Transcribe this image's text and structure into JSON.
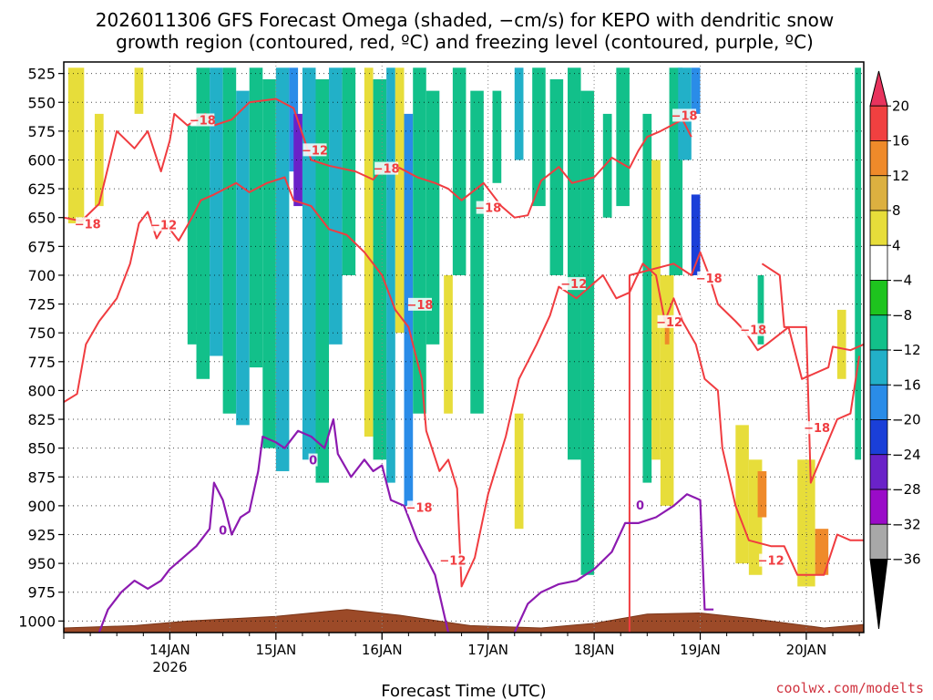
{
  "chart_data": {
    "type": "heatmap",
    "title_line1": "2026011306 GFS Forecast Omega (shaded, −cm/s) for KEPO with dendritic snow",
    "title_line2": "growth region (contoured, red, ºC) and freezing level (contoured, purple, ºC)",
    "xlabel": "Forecast Time (UTC)",
    "ylabel": "",
    "credit": "coolwx.com/modelts",
    "y_levels": [
      525,
      550,
      575,
      600,
      625,
      650,
      675,
      700,
      725,
      750,
      775,
      800,
      825,
      850,
      875,
      900,
      925,
      950,
      975,
      1000
    ],
    "y_labels": [
      "525",
      "550",
      "575",
      "600",
      "625",
      "650",
      "675",
      "700",
      "725",
      "750",
      "775",
      "800",
      "825",
      "850",
      "875",
      "900",
      "925",
      "950",
      "975",
      "1000"
    ],
    "ylim": [
      1010,
      515
    ],
    "x_hours": [
      6,
      96.5
    ],
    "x_ticks": [
      {
        "hour": 18,
        "label": "14JAN",
        "sublabel": "2026"
      },
      {
        "hour": 30,
        "label": "15JAN",
        "sublabel": ""
      },
      {
        "hour": 42,
        "label": "16JAN",
        "sublabel": ""
      },
      {
        "hour": 54,
        "label": "17JAN",
        "sublabel": ""
      },
      {
        "hour": 66,
        "label": "18JAN",
        "sublabel": ""
      },
      {
        "hour": 78,
        "label": "19JAN",
        "sublabel": ""
      },
      {
        "hour": 90,
        "label": "20JAN",
        "sublabel": ""
      }
    ],
    "grid": true,
    "colorbar": {
      "labels": [
        "20",
        "16",
        "12",
        "8",
        "4",
        "−4",
        "−8",
        "−12",
        "−16",
        "−20",
        "−24",
        "−28",
        "−32",
        "−36"
      ],
      "colors": [
        "#e8335d",
        "#f04040",
        "#ef8a2a",
        "#dcb040",
        "#e7dd3a",
        "#ffffff",
        "#1ec41e",
        "#12c08a",
        "#22b0c8",
        "#2a8ce8",
        "#1a3fd8",
        "#6a22c8",
        "#9a0bc8",
        "#a8a8a8",
        "#000000"
      ],
      "legend_position": "right"
    },
    "omega_cells": [
      {
        "t0": 6.5,
        "t1": 8.3,
        "p0": 520,
        "p1": 655,
        "v": 4
      },
      {
        "t0": 9.5,
        "t1": 10.5,
        "p0": 560,
        "p1": 640,
        "v": 4
      },
      {
        "t0": 14.0,
        "t1": 15.0,
        "p0": 520,
        "p1": 560,
        "v": 4
      },
      {
        "t0": 20.0,
        "t1": 21.0,
        "p0": 570,
        "p1": 760,
        "v": -8
      },
      {
        "t0": 21.0,
        "t1": 22.5,
        "p0": 520,
        "p1": 790,
        "v": -8
      },
      {
        "t0": 22.5,
        "t1": 24.0,
        "p0": 520,
        "p1": 770,
        "v": -12
      },
      {
        "t0": 24.0,
        "t1": 25.5,
        "p0": 520,
        "p1": 820,
        "v": -8
      },
      {
        "t0": 25.5,
        "t1": 27.0,
        "p0": 540,
        "p1": 830,
        "v": -12
      },
      {
        "t0": 27.0,
        "t1": 28.5,
        "p0": 520,
        "p1": 780,
        "v": -8
      },
      {
        "t0": 28.5,
        "t1": 30.0,
        "p0": 530,
        "p1": 850,
        "v": -8
      },
      {
        "t0": 30.0,
        "t1": 31.5,
        "p0": 520,
        "p1": 870,
        "v": -12
      },
      {
        "t0": 31.5,
        "t1": 32.5,
        "p0": 520,
        "p1": 610,
        "v": -16
      },
      {
        "t0": 32.0,
        "t1": 33.0,
        "p0": 560,
        "p1": 640,
        "v": -24
      },
      {
        "t0": 33.0,
        "t1": 34.5,
        "p0": 520,
        "p1": 860,
        "v": -12
      },
      {
        "t0": 34.5,
        "t1": 36.0,
        "p0": 530,
        "p1": 880,
        "v": -8
      },
      {
        "t0": 36.0,
        "t1": 37.5,
        "p0": 520,
        "p1": 760,
        "v": -12
      },
      {
        "t0": 37.5,
        "t1": 39.0,
        "p0": 520,
        "p1": 700,
        "v": -8
      },
      {
        "t0": 40.0,
        "t1": 41.0,
        "p0": 520,
        "p1": 840,
        "v": 4
      },
      {
        "t0": 41.0,
        "t1": 42.5,
        "p0": 530,
        "p1": 860,
        "v": -8
      },
      {
        "t0": 42.5,
        "t1": 43.5,
        "p0": 520,
        "p1": 880,
        "v": -12
      },
      {
        "t0": 43.5,
        "t1": 44.5,
        "p0": 520,
        "p1": 750,
        "v": 4
      },
      {
        "t0": 44.5,
        "t1": 45.5,
        "p0": 560,
        "p1": 900,
        "v": -16
      },
      {
        "t0": 45.5,
        "t1": 47.0,
        "p0": 520,
        "p1": 820,
        "v": -8
      },
      {
        "t0": 47.0,
        "t1": 48.5,
        "p0": 540,
        "p1": 760,
        "v": -8
      },
      {
        "t0": 49.0,
        "t1": 50.0,
        "p0": 700,
        "p1": 820,
        "v": 4
      },
      {
        "t0": 50.0,
        "t1": 51.5,
        "p0": 520,
        "p1": 700,
        "v": -8
      },
      {
        "t0": 52.0,
        "t1": 53.5,
        "p0": 540,
        "p1": 820,
        "v": -8
      },
      {
        "t0": 54.5,
        "t1": 55.5,
        "p0": 540,
        "p1": 620,
        "v": -8
      },
      {
        "t0": 57.0,
        "t1": 58.0,
        "p0": 520,
        "p1": 600,
        "v": -12
      },
      {
        "t0": 57.0,
        "t1": 58.0,
        "p0": 820,
        "p1": 920,
        "v": 4
      },
      {
        "t0": 59.0,
        "t1": 60.5,
        "p0": 520,
        "p1": 640,
        "v": -8
      },
      {
        "t0": 61.0,
        "t1": 62.5,
        "p0": 530,
        "p1": 700,
        "v": -8
      },
      {
        "t0": 63.0,
        "t1": 64.5,
        "p0": 520,
        "p1": 860,
        "v": -8
      },
      {
        "t0": 64.5,
        "t1": 66.0,
        "p0": 540,
        "p1": 960,
        "v": -8
      },
      {
        "t0": 67.0,
        "t1": 68.0,
        "p0": 560,
        "p1": 650,
        "v": -8
      },
      {
        "t0": 68.5,
        "t1": 70.0,
        "p0": 520,
        "p1": 640,
        "v": -8
      },
      {
        "t0": 71.5,
        "t1": 72.5,
        "p0": 560,
        "p1": 880,
        "v": -8
      },
      {
        "t0": 72.5,
        "t1": 73.5,
        "p0": 600,
        "p1": 860,
        "v": 4
      },
      {
        "t0": 74.5,
        "t1": 76.0,
        "p0": 520,
        "p1": 700,
        "v": -8
      },
      {
        "t0": 75.5,
        "t1": 77.0,
        "p0": 520,
        "p1": 600,
        "v": -12
      },
      {
        "t0": 77.0,
        "t1": 78.0,
        "p0": 520,
        "p1": 560,
        "v": -16
      },
      {
        "t0": 77.0,
        "t1": 78.0,
        "p0": 630,
        "p1": 700,
        "v": -20
      },
      {
        "t0": 73.5,
        "t1": 75.0,
        "p0": 700,
        "p1": 900,
        "v": 4
      },
      {
        "t0": 74.0,
        "t1": 74.5,
        "p0": 740,
        "p1": 760,
        "v": 12
      },
      {
        "t0": 82.0,
        "t1": 83.5,
        "p0": 830,
        "p1": 950,
        "v": 4
      },
      {
        "t0": 83.5,
        "t1": 85.0,
        "p0": 860,
        "p1": 960,
        "v": 4
      },
      {
        "t0": 84.5,
        "t1": 85.5,
        "p0": 870,
        "p1": 910,
        "v": 12
      },
      {
        "t0": 89.0,
        "t1": 91.0,
        "p0": 860,
        "p1": 970,
        "v": 4
      },
      {
        "t0": 91.0,
        "t1": 92.5,
        "p0": 920,
        "p1": 960,
        "v": 12
      },
      {
        "t0": 93.5,
        "t1": 94.5,
        "p0": 730,
        "p1": 790,
        "v": 4
      },
      {
        "t0": 95.5,
        "t1": 96.2,
        "p0": 520,
        "p1": 860,
        "v": -8
      },
      {
        "t0": 84.5,
        "t1": 85.2,
        "p0": 700,
        "p1": 760,
        "v": -8
      }
    ],
    "dgz_upper": [
      [
        6,
        650
      ],
      [
        8,
        653
      ],
      [
        10,
        638
      ],
      [
        12,
        575
      ],
      [
        14,
        590
      ],
      [
        15.5,
        575
      ],
      [
        17,
        610
      ],
      [
        18,
        583
      ],
      [
        18.5,
        560
      ],
      [
        20,
        570
      ],
      [
        22,
        560
      ],
      [
        23,
        570
      ],
      [
        25,
        565
      ],
      [
        27,
        550
      ],
      [
        30,
        547
      ],
      [
        32,
        555
      ],
      [
        34,
        600
      ],
      [
        36,
        605
      ],
      [
        39,
        610
      ],
      [
        41,
        617
      ],
      [
        42,
        608
      ],
      [
        44,
        607
      ],
      [
        46,
        615
      ],
      [
        48,
        620
      ],
      [
        49.5,
        625
      ],
      [
        51,
        635
      ],
      [
        53.5,
        620
      ],
      [
        55.5,
        640
      ],
      [
        57,
        650
      ],
      [
        58.5,
        648
      ],
      [
        60,
        618
      ],
      [
        62,
        606
      ],
      [
        63.5,
        620
      ],
      [
        66,
        615
      ],
      [
        68,
        598
      ],
      [
        70,
        607
      ],
      [
        71,
        592
      ],
      [
        72,
        580
      ],
      [
        73.5,
        575
      ],
      [
        76,
        565
      ],
      [
        77,
        580
      ]
    ],
    "dgz_lower": [
      [
        6,
        810
      ],
      [
        7.5,
        803
      ],
      [
        8.5,
        760
      ],
      [
        10,
        740
      ],
      [
        12,
        720
      ],
      [
        13,
        700
      ],
      [
        13.5,
        690
      ],
      [
        14.5,
        655
      ],
      [
        15.5,
        645
      ],
      [
        16.5,
        668
      ],
      [
        17.5,
        655
      ],
      [
        19,
        670
      ],
      [
        20.5,
        650
      ],
      [
        21.5,
        635
      ],
      [
        23,
        630
      ],
      [
        25.5,
        620
      ],
      [
        27,
        628
      ],
      [
        29,
        620
      ],
      [
        31,
        615
      ],
      [
        32,
        635
      ],
      [
        34,
        640
      ],
      [
        36,
        660
      ],
      [
        38,
        665
      ],
      [
        40,
        680
      ],
      [
        42,
        700
      ],
      [
        43.5,
        730
      ],
      [
        45,
        745
      ],
      [
        46.5,
        790
      ],
      [
        47,
        835
      ],
      [
        48.5,
        870
      ],
      [
        49.5,
        860
      ],
      [
        50.5,
        885
      ],
      [
        51,
        970
      ],
      [
        52.5,
        945
      ],
      [
        54,
        890
      ],
      [
        56,
        840
      ],
      [
        57.5,
        790
      ],
      [
        59.5,
        760
      ],
      [
        61,
        735
      ],
      [
        62,
        710
      ],
      [
        64,
        720
      ],
      [
        65.5,
        710
      ],
      [
        67,
        700
      ],
      [
        68.5,
        720
      ],
      [
        70,
        715
      ],
      [
        71.5,
        690
      ],
      [
        73,
        700
      ],
      [
        74,
        740
      ],
      [
        75,
        720
      ],
      [
        76,
        740
      ],
      [
        77.5,
        760
      ],
      [
        78.5,
        790
      ],
      [
        80,
        800
      ],
      [
        80.5,
        850
      ],
      [
        82,
        900
      ],
      [
        83.5,
        930
      ],
      [
        86,
        935
      ],
      [
        87.5,
        935
      ],
      [
        89,
        960
      ],
      [
        92,
        960
      ],
      [
        93.5,
        925
      ],
      [
        95,
        930
      ],
      [
        96.5,
        930
      ]
    ],
    "dgz_mid_segments": [
      [
        [
          70,
          1010
        ],
        [
          70,
          700
        ],
        [
          75,
          690
        ],
        [
          77,
          700
        ],
        [
          78,
          680
        ],
        [
          79,
          700
        ],
        [
          80,
          725
        ],
        [
          82,
          740
        ],
        [
          83,
          748
        ],
        [
          84.5,
          765
        ],
        [
          85.5,
          760
        ],
        [
          88,
          745
        ],
        [
          89.5,
          790
        ],
        [
          92.5,
          780
        ],
        [
          93,
          762
        ],
        [
          95,
          765
        ],
        [
          96.5,
          760
        ]
      ],
      [
        [
          85,
          690
        ],
        [
          87,
          700
        ],
        [
          87.5,
          745
        ],
        [
          90,
          745
        ],
        [
          90.5,
          880
        ],
        [
          93.5,
          825
        ],
        [
          95,
          820
        ],
        [
          96,
          770
        ]
      ]
    ],
    "freezing_level": [
      [
        [
          10,
          1010
        ],
        [
          11,
          990
        ],
        [
          12.5,
          975
        ],
        [
          14,
          965
        ],
        [
          15.5,
          972
        ],
        [
          17,
          965
        ],
        [
          18,
          955
        ],
        [
          19.5,
          945
        ],
        [
          21,
          935
        ],
        [
          22.5,
          920
        ],
        [
          23,
          880
        ],
        [
          24,
          895
        ],
        [
          25,
          925
        ],
        [
          26,
          910
        ],
        [
          27,
          905
        ],
        [
          28,
          870
        ],
        [
          28.5,
          840
        ],
        [
          30,
          845
        ],
        [
          31,
          850
        ],
        [
          32.5,
          835
        ],
        [
          34,
          840
        ],
        [
          35.5,
          850
        ],
        [
          36.5,
          825
        ],
        [
          37,
          855
        ],
        [
          38.5,
          875
        ],
        [
          40,
          860
        ],
        [
          41,
          870
        ],
        [
          42,
          865
        ],
        [
          43,
          895
        ],
        [
          44.5,
          900
        ],
        [
          46,
          930
        ],
        [
          48,
          960
        ],
        [
          49.5,
          1010
        ]
      ],
      [
        [
          57,
          1010
        ],
        [
          58.5,
          985
        ],
        [
          60,
          975
        ],
        [
          62,
          968
        ],
        [
          64,
          965
        ],
        [
          66,
          955
        ],
        [
          68,
          940
        ],
        [
          69.5,
          915
        ],
        [
          71,
          915
        ],
        [
          73,
          910
        ],
        [
          75,
          900
        ],
        [
          76.5,
          890
        ],
        [
          78,
          895
        ],
        [
          78.5,
          990
        ],
        [
          79.5,
          990
        ]
      ]
    ],
    "terrain_peak_hpa": 990,
    "contour_labels": [
      {
        "t": 8.7,
        "p": 656,
        "text": "−18",
        "color": "#f03c40"
      },
      {
        "t": 17.3,
        "p": 657,
        "text": "−12",
        "color": "#f03c40"
      },
      {
        "t": 21.7,
        "p": 566,
        "text": "−18",
        "color": "#f03c40"
      },
      {
        "t": 34.4,
        "p": 592,
        "text": "−12",
        "color": "#f03c40"
      },
      {
        "t": 42.5,
        "p": 608,
        "text": "−18",
        "color": "#f03c40"
      },
      {
        "t": 46.3,
        "p": 726,
        "text": "−18",
        "color": "#f03c40"
      },
      {
        "t": 54.0,
        "p": 642,
        "text": "−18",
        "color": "#f03c40"
      },
      {
        "t": 63.7,
        "p": 708,
        "text": "−12",
        "color": "#f03c40"
      },
      {
        "t": 76.2,
        "p": 562,
        "text": "−18",
        "color": "#f03c40"
      },
      {
        "t": 74.5,
        "p": 741,
        "text": "−12",
        "color": "#f03c40"
      },
      {
        "t": 79.0,
        "p": 703,
        "text": "−18",
        "color": "#f03c40"
      },
      {
        "t": 84.0,
        "p": 748,
        "text": "−18",
        "color": "#f03c40"
      },
      {
        "t": 91.2,
        "p": 833,
        "text": "−18",
        "color": "#f03c40"
      },
      {
        "t": 46.2,
        "p": 902,
        "text": "−18",
        "color": "#f03c40"
      },
      {
        "t": 50.0,
        "p": 948,
        "text": "−12",
        "color": "#f03c40"
      },
      {
        "t": 86.0,
        "p": 948,
        "text": "−12",
        "color": "#f03c40"
      },
      {
        "t": 34.2,
        "p": 861,
        "text": "0",
        "color": "#8c1ab0"
      },
      {
        "t": 24.0,
        "p": 922,
        "text": "0",
        "color": "#8c1ab0"
      },
      {
        "t": 71.2,
        "p": 900,
        "text": "0",
        "color": "#8c1ab0"
      }
    ]
  }
}
